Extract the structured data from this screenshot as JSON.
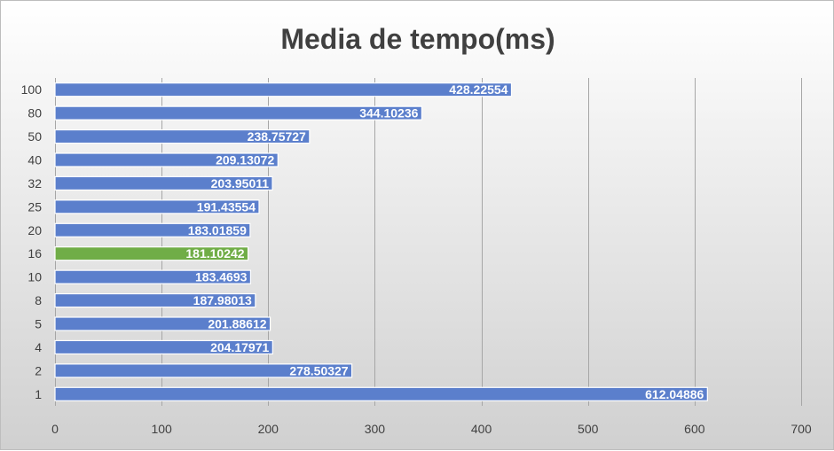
{
  "chart_data": {
    "type": "bar",
    "orientation": "horizontal",
    "title": "Media de tempo(ms)",
    "xlabel": "",
    "ylabel": "",
    "xlim": [
      0,
      700
    ],
    "x_ticks": [
      0,
      100,
      200,
      300,
      400,
      500,
      600,
      700
    ],
    "grid": "vertical",
    "categories": [
      "100",
      "80",
      "50",
      "40",
      "32",
      "25",
      "20",
      "16",
      "10",
      "8",
      "5",
      "4",
      "2",
      "1"
    ],
    "values": [
      428.22554,
      344.10236,
      238.75727,
      209.13072,
      203.95011,
      191.43554,
      183.01859,
      181.10242,
      183.4693,
      187.98013,
      201.88612,
      204.17971,
      278.50327,
      612.04886
    ],
    "value_labels": [
      "428.22554",
      "344.10236",
      "238.75727",
      "209.13072",
      "203.95011",
      "191.43554",
      "183.01859",
      "181.10242",
      "183.4693",
      "187.98013",
      "201.88612",
      "204.17971",
      "278.50327",
      "612.04886"
    ],
    "bar_color": "#5B7FCC",
    "highlight_category": "16",
    "highlight_color": "#70AD47",
    "label_color": "#ffffff",
    "grid_color": "#a6a6a6",
    "text_color": "#404040"
  }
}
